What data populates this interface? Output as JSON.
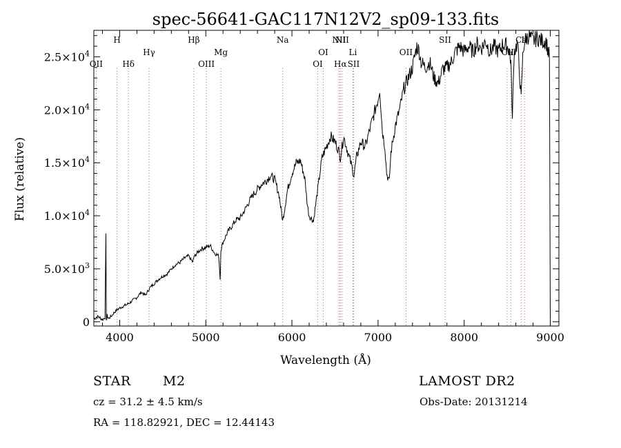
{
  "chart_data": {
    "type": "line",
    "title": "spec-56641-GAC117N12V2_sp09-133.fits",
    "xlabel": "Wavelength (Å)",
    "ylabel": "Flux (relative)",
    "xlim": [
      3700,
      9100
    ],
    "ylim": [
      -400,
      27500
    ],
    "xticks": [
      4000,
      5000,
      6000,
      7000,
      8000,
      9000
    ],
    "xtick_labels": [
      "4000",
      "5000",
      "6000",
      "7000",
      "8000",
      "9000"
    ],
    "yticks": [
      0,
      5000,
      10000,
      15000,
      20000,
      25000
    ],
    "ytick_labels": [
      {
        "mantissa": "0",
        "exp": ""
      },
      {
        "mantissa": "5.0×10",
        "exp": "3"
      },
      {
        "mantissa": "1.0×10",
        "exp": "4"
      },
      {
        "mantissa": "1.5×10",
        "exp": "4"
      },
      {
        "mantissa": "2.0×10",
        "exp": "4"
      },
      {
        "mantissa": "2.5×10",
        "exp": "4"
      }
    ],
    "grid": false,
    "series": [
      {
        "x": [
          3700,
          3750,
          3800,
          3830,
          3840,
          3845,
          3850,
          3855,
          3870,
          3900,
          3950,
          4000,
          4050,
          4100,
          4150,
          4200,
          4250,
          4300,
          4350,
          4400,
          4450,
          4500,
          4550,
          4600,
          4650,
          4700,
          4750,
          4800,
          4850,
          4861,
          4900,
          4950,
          5000,
          5050,
          5100,
          5150,
          5167,
          5175,
          5200,
          5250,
          5300,
          5350,
          5400,
          5450,
          5500,
          5550,
          5600,
          5650,
          5700,
          5750,
          5800,
          5850,
          5893,
          5950,
          6000,
          6050,
          6100,
          6150,
          6180,
          6200,
          6250,
          6300,
          6350,
          6400,
          6450,
          6500,
          6550,
          6563,
          6600,
          6650,
          6700,
          6720,
          6750,
          6800,
          6850,
          6900,
          6950,
          7000,
          7020,
          7050,
          7080,
          7100,
          7130,
          7150,
          7200,
          7250,
          7300,
          7350,
          7400,
          7450,
          7480,
          7500,
          7550,
          7600,
          7650,
          7700,
          7750,
          7800,
          7850,
          7900,
          7950,
          8000,
          8050,
          8100,
          8150,
          8200,
          8250,
          8300,
          8350,
          8400,
          8450,
          8498,
          8520,
          8542,
          8560,
          8580,
          8620,
          8662,
          8680,
          8700,
          8750,
          8800,
          8850,
          8900,
          8950,
          8990,
          9000
        ],
        "y": [
          300,
          500,
          200,
          400,
          8100,
          300,
          200,
          600,
          300,
          500,
          1000,
          1300,
          1500,
          1700,
          2000,
          2300,
          2800,
          2500,
          3200,
          3600,
          4000,
          4300,
          4500,
          5000,
          5400,
          5600,
          6000,
          6200,
          5600,
          6100,
          6500,
          6900,
          7000,
          7200,
          6500,
          6200,
          4000,
          6800,
          7500,
          8400,
          9000,
          9600,
          9800,
          10500,
          11300,
          12000,
          12500,
          13000,
          13300,
          13800,
          13400,
          12000,
          9500,
          12500,
          14000,
          15000,
          15200,
          13500,
          11000,
          10000,
          9500,
          12500,
          15500,
          16500,
          17500,
          17000,
          16000,
          15500,
          17500,
          16000,
          14500,
          13800,
          15500,
          17000,
          16500,
          18000,
          19500,
          21000,
          22000,
          18000,
          16500,
          14000,
          13200,
          16000,
          18500,
          20000,
          22000,
          23000,
          24000,
          26000,
          25500,
          24500,
          24000,
          24500,
          23000,
          22500,
          23800,
          24000,
          24500,
          25500,
          26000,
          25500,
          26000,
          25500,
          26200,
          25800,
          26500,
          25500,
          26000,
          25500,
          26200,
          26000,
          25800,
          24500,
          19000,
          25500,
          26300,
          21000,
          25000,
          26500,
          27000,
          26500,
          26800,
          26500,
          26500,
          25000,
          200
        ]
      }
    ],
    "lines": [
      {
        "label": "OII",
        "wave": 3727,
        "row": 4
      },
      {
        "label": "H",
        "wave": 3969,
        "row": 1
      },
      {
        "label": "Hδ",
        "wave": 4102,
        "row": 4
      },
      {
        "label": "Hγ",
        "wave": 4341,
        "row": 2
      },
      {
        "label": "Hβ",
        "wave": 4861,
        "row": 1
      },
      {
        "label": "OIII",
        "wave": 5007,
        "row": 4
      },
      {
        "label": "Mg",
        "wave": 5175,
        "row": 2
      },
      {
        "label": "Na",
        "wave": 5893,
        "row": 1
      },
      {
        "label": "OI",
        "wave": 6300,
        "row": 4
      },
      {
        "label": "OI",
        "wave": 6364,
        "row": 2
      },
      {
        "label": "NII",
        "wave": 6548,
        "row": 1
      },
      {
        "label": "Hα",
        "wave": 6563,
        "row": 4
      },
      {
        "label": "NII",
        "wave": 6583,
        "row": 1
      },
      {
        "label": "Li",
        "wave": 6708,
        "row": 2
      },
      {
        "label": "SII",
        "wave": 6716,
        "row": 4
      },
      {
        "label": "OII",
        "wave": 7325,
        "row": 2
      },
      {
        "label": "SII",
        "wave": 7778,
        "row": 1
      },
      {
        "label": "Ca",
        "wave": 8498,
        "row": 2
      },
      {
        "label": "II",
        "wave": 8542,
        "row": 2
      },
      {
        "label": "Ca",
        "wave": 8662,
        "row": 1
      },
      {
        "label": "II",
        "wave": 8700,
        "row": 1
      }
    ]
  },
  "info": {
    "object_class": "STAR",
    "subclass": "M2",
    "survey": "LAMOST DR2",
    "redshift": "cz = 31.2 ± 4.5 km/s",
    "obs_date": "Obs-Date: 20131214",
    "coords": "RA = 118.82921, DEC =  12.44143"
  }
}
